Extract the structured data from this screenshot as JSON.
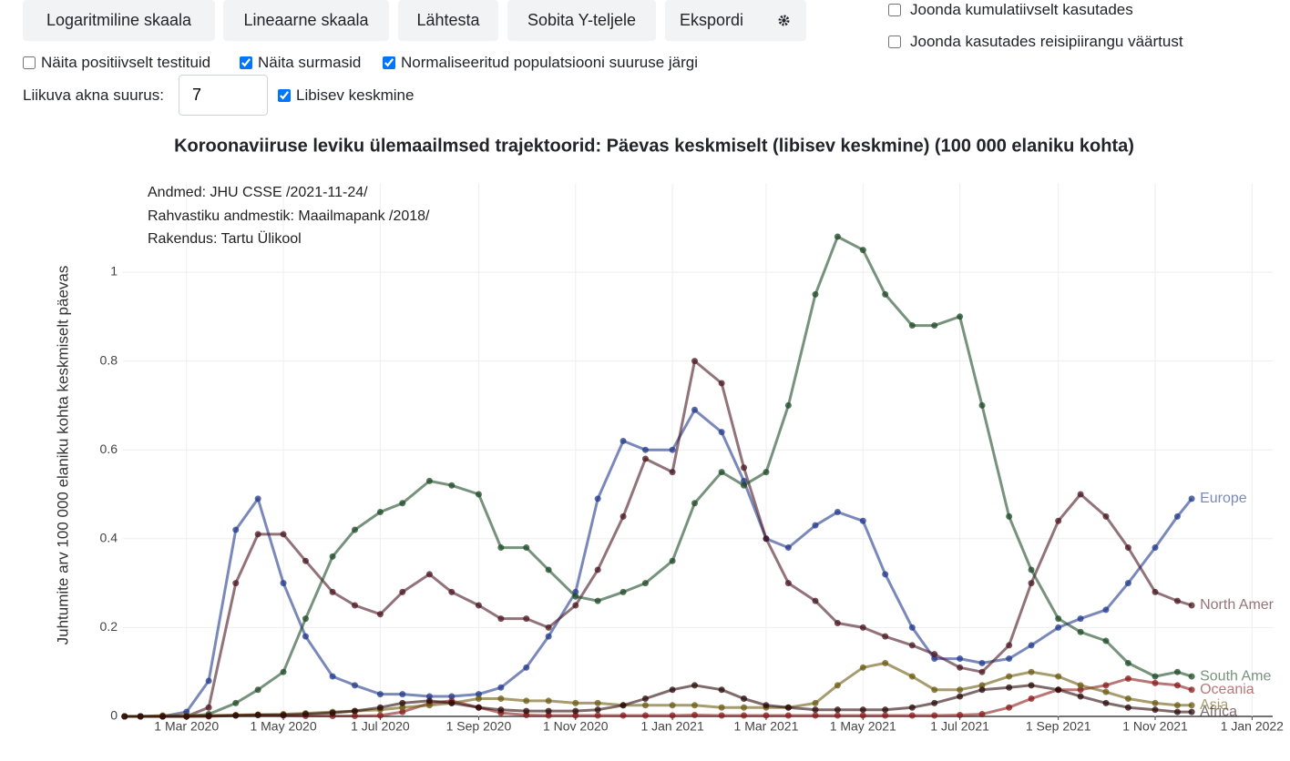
{
  "toolbar": {
    "buttons": [
      "Logaritmiline skaala",
      "Lineaarne skaala",
      "Lähtesta",
      "Sobita Y-teljele",
      "Ekspordi"
    ]
  },
  "alignment_options": [
    {
      "label": "Joonda kumulatiivselt kasutades",
      "checked": false
    },
    {
      "label": "Joonda kasutades reisipiirangu väärtust",
      "checked": false
    }
  ],
  "display_options": [
    {
      "label": "Näita positiivselt testituid",
      "checked": false
    },
    {
      "label": "Näita surmasid",
      "checked": true
    },
    {
      "label": "Normaliseeritud populatsiooni suuruse järgi",
      "checked": true
    }
  ],
  "window_size": {
    "label": "Liikuva akna suurus:",
    "value": 7
  },
  "moving_average": {
    "label": "Libisev keskmine",
    "checked": true
  },
  "chart_data": {
    "type": "line",
    "title": "Koroonaviiruse leviku ülemaailmsed trajektoorid: Päevas keskmiselt (libisev keskmine) (100 000 elaniku kohta)",
    "annotations": [
      "Andmed: JHU CSSE /2021-11-24/",
      "Rahvastiku andmestik: Maailmapank /2018/",
      "Rakendus: Tartu Ülikool"
    ],
    "y_label": "Juhtumite arv 100 000 elaniku kohta keskmiselt päevas",
    "x": [
      "2020-01-22",
      "2020-02-01",
      "2020-02-15",
      "2020-03-01",
      "2020-03-15",
      "2020-04-01",
      "2020-04-15",
      "2020-05-01",
      "2020-05-15",
      "2020-06-01",
      "2020-06-15",
      "2020-07-01",
      "2020-07-15",
      "2020-08-01",
      "2020-08-15",
      "2020-09-01",
      "2020-09-15",
      "2020-10-01",
      "2020-10-15",
      "2020-11-01",
      "2020-11-15",
      "2020-12-01",
      "2020-12-15",
      "2021-01-01",
      "2021-01-15",
      "2021-02-01",
      "2021-02-15",
      "2021-03-01",
      "2021-03-15",
      "2021-04-01",
      "2021-04-15",
      "2021-05-01",
      "2021-05-15",
      "2021-06-01",
      "2021-06-15",
      "2021-07-01",
      "2021-07-15",
      "2021-08-01",
      "2021-08-15",
      "2021-09-01",
      "2021-09-15",
      "2021-10-01",
      "2021-10-15",
      "2021-11-01",
      "2021-11-15",
      "2021-11-24"
    ],
    "series": [
      {
        "name": "Europe",
        "color": "#223a8c",
        "values": [
          0,
          0,
          0,
          0.01,
          0.08,
          0.42,
          0.49,
          0.3,
          0.18,
          0.09,
          0.07,
          0.05,
          0.05,
          0.045,
          0.045,
          0.05,
          0.065,
          0.11,
          0.18,
          0.28,
          0.49,
          0.62,
          0.6,
          0.6,
          0.69,
          0.64,
          0.53,
          0.4,
          0.38,
          0.43,
          0.46,
          0.44,
          0.32,
          0.2,
          0.13,
          0.13,
          0.12,
          0.13,
          0.16,
          0.2,
          0.22,
          0.24,
          0.3,
          0.38,
          0.45,
          0.49
        ]
      },
      {
        "name": "North Amer",
        "color": "#4a1620",
        "values": [
          0,
          0,
          0,
          0,
          0.02,
          0.3,
          0.41,
          0.41,
          0.35,
          0.28,
          0.25,
          0.23,
          0.28,
          0.32,
          0.28,
          0.25,
          0.22,
          0.22,
          0.2,
          0.25,
          0.33,
          0.45,
          0.58,
          0.55,
          0.8,
          0.75,
          0.56,
          0.4,
          0.3,
          0.26,
          0.21,
          0.2,
          0.18,
          0.16,
          0.14,
          0.11,
          0.1,
          0.16,
          0.3,
          0.44,
          0.5,
          0.45,
          0.38,
          0.28,
          0.26,
          0.25
        ]
      },
      {
        "name": "South Ame",
        "color": "#1d4a26",
        "values": [
          0,
          0,
          0,
          0,
          0.005,
          0.03,
          0.06,
          0.1,
          0.22,
          0.36,
          0.42,
          0.46,
          0.48,
          0.53,
          0.52,
          0.5,
          0.38,
          0.38,
          0.33,
          0.27,
          0.26,
          0.28,
          0.3,
          0.35,
          0.48,
          0.55,
          0.52,
          0.55,
          0.7,
          0.95,
          1.08,
          1.05,
          0.95,
          0.88,
          0.88,
          0.9,
          0.7,
          0.45,
          0.33,
          0.22,
          0.19,
          0.17,
          0.12,
          0.09,
          0.1,
          0.09
        ]
      },
      {
        "name": "Oceania",
        "color": "#8b1a1a",
        "values": [
          0,
          0,
          0,
          0,
          0,
          0.002,
          0.003,
          0.002,
          0.001,
          0.001,
          0.001,
          0.002,
          0.01,
          0.03,
          0.035,
          0.02,
          0.008,
          0.003,
          0.002,
          0.002,
          0.002,
          0.002,
          0.002,
          0.002,
          0.003,
          0.002,
          0.002,
          0.002,
          0.002,
          0.002,
          0.002,
          0.002,
          0.002,
          0.002,
          0.002,
          0.003,
          0.005,
          0.02,
          0.04,
          0.06,
          0.06,
          0.07,
          0.085,
          0.075,
          0.07,
          0.06
        ]
      },
      {
        "name": "Asia",
        "color": "#6b5a10",
        "values": [
          0,
          0,
          0.002,
          0.002,
          0.002,
          0.003,
          0.004,
          0.005,
          0.007,
          0.01,
          0.012,
          0.015,
          0.02,
          0.025,
          0.03,
          0.04,
          0.04,
          0.035,
          0.035,
          0.03,
          0.03,
          0.025,
          0.025,
          0.025,
          0.025,
          0.02,
          0.02,
          0.02,
          0.02,
          0.03,
          0.07,
          0.11,
          0.12,
          0.09,
          0.06,
          0.06,
          0.07,
          0.09,
          0.1,
          0.09,
          0.07,
          0.055,
          0.04,
          0.03,
          0.025,
          0.025
        ]
      },
      {
        "name": "Africa",
        "color": "#2a0808",
        "values": [
          0,
          0,
          0,
          0,
          0.001,
          0.002,
          0.003,
          0.003,
          0.005,
          0.008,
          0.012,
          0.02,
          0.03,
          0.035,
          0.03,
          0.02,
          0.015,
          0.012,
          0.012,
          0.012,
          0.015,
          0.025,
          0.04,
          0.06,
          0.07,
          0.06,
          0.04,
          0.025,
          0.02,
          0.015,
          0.015,
          0.015,
          0.015,
          0.02,
          0.03,
          0.045,
          0.06,
          0.065,
          0.07,
          0.06,
          0.045,
          0.03,
          0.02,
          0.015,
          0.01,
          0.01
        ]
      }
    ],
    "xlim": [
      "2020-01-21",
      "2022-01-14"
    ],
    "xticks": [
      {
        "value": "2020-03-01",
        "label": "1 Mar 2020"
      },
      {
        "value": "2020-05-01",
        "label": "1 May 2020"
      },
      {
        "value": "2020-07-01",
        "label": "1 Jul 2020"
      },
      {
        "value": "2020-09-01",
        "label": "1 Sep 2020"
      },
      {
        "value": "2020-11-01",
        "label": "1 Nov 2020"
      },
      {
        "value": "2021-01-01",
        "label": "1 Jan 2021"
      },
      {
        "value": "2021-03-01",
        "label": "1 Mar 2021"
      },
      {
        "value": "2021-05-01",
        "label": "1 May 2021"
      },
      {
        "value": "2021-07-01",
        "label": "1 Jul 2021"
      },
      {
        "value": "2021-09-01",
        "label": "1 Sep 2021"
      },
      {
        "value": "2021-11-01",
        "label": "1 Nov 2021"
      },
      {
        "value": "2022-01-01",
        "label": "1 Jan 2022"
      }
    ],
    "ylim": [
      0,
      1.2
    ],
    "yticks": [
      0,
      0.2,
      0.4,
      0.6,
      0.8,
      1
    ],
    "grid": true,
    "markers": true
  }
}
